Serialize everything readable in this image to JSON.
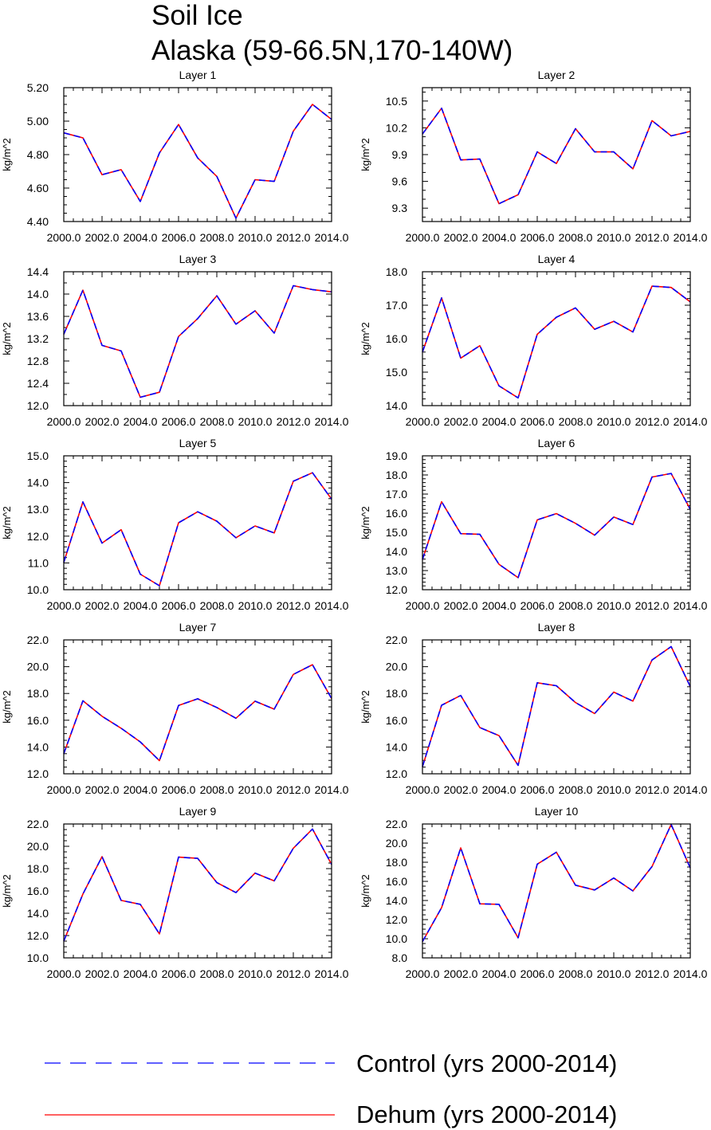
{
  "title": {
    "line1": "Soil Ice",
    "line2": "Alaska (59-66.5N,170-140W)"
  },
  "colors": {
    "control": "#0000ff",
    "dehum": "#ff0000",
    "axes": "#000000",
    "background": "#ffffff"
  },
  "legend": {
    "placement": "bottom",
    "items": [
      {
        "label": "Control (yrs 2000-2014)",
        "color": "#0000ff",
        "style": "dashed"
      },
      {
        "label": "Dehum (yrs 2000-2014)",
        "color": "#ff0000",
        "style": "solid"
      }
    ]
  },
  "chart_data": [
    {
      "type": "line",
      "title": "Layer 1",
      "ylabel": "kg/m^2",
      "x": [
        2000,
        2001,
        2002,
        2003,
        2004,
        2005,
        2006,
        2007,
        2008,
        2009,
        2010,
        2011,
        2012,
        2013,
        2014
      ],
      "xlim": [
        2000,
        2014
      ],
      "xticks": [
        2000,
        2002,
        2004,
        2006,
        2008,
        2010,
        2012,
        2014
      ],
      "xtick_labels": [
        "2000.0",
        "2002.0",
        "2004.0",
        "2006.0",
        "2008.0",
        "2010.0",
        "2012.0",
        "2014.0"
      ],
      "ylim": [
        4.4,
        5.2
      ],
      "yticks": [
        4.4,
        4.6,
        4.8,
        5.0,
        5.2
      ],
      "ytick_labels": [
        "4.40",
        "4.60",
        "4.80",
        "5.00",
        "5.20"
      ],
      "yminor": 4,
      "series": [
        {
          "name": "Control (yrs 2000-2014)",
          "values": [
            4.93,
            4.9,
            4.68,
            4.71,
            4.52,
            4.81,
            4.98,
            4.78,
            4.67,
            4.42,
            4.65,
            4.64,
            4.94,
            5.1,
            5.01
          ]
        },
        {
          "name": "Dehum (yrs 2000-2014)",
          "values": [
            4.93,
            4.9,
            4.68,
            4.71,
            4.52,
            4.81,
            4.98,
            4.78,
            4.67,
            4.42,
            4.65,
            4.64,
            4.94,
            5.1,
            5.01
          ]
        }
      ]
    },
    {
      "type": "line",
      "title": "Layer 2",
      "ylabel": "kg/m^2",
      "x": [
        2000,
        2001,
        2002,
        2003,
        2004,
        2005,
        2006,
        2007,
        2008,
        2009,
        2010,
        2011,
        2012,
        2013,
        2014
      ],
      "xlim": [
        2000,
        2014
      ],
      "xticks": [
        2000,
        2002,
        2004,
        2006,
        2008,
        2010,
        2012,
        2014
      ],
      "xtick_labels": [
        "2000.0",
        "2002.0",
        "2004.0",
        "2006.0",
        "2008.0",
        "2010.0",
        "2012.0",
        "2014.0"
      ],
      "ylim": [
        9.15,
        10.65
      ],
      "yticks": [
        9.3,
        9.6,
        9.9,
        10.2,
        10.5
      ],
      "ytick_labels": [
        "9.3",
        "9.6",
        "9.9",
        "10.2",
        "10.5"
      ],
      "yminor": 3,
      "series": [
        {
          "name": "Control (yrs 2000-2014)",
          "values": [
            10.13,
            10.42,
            9.84,
            9.85,
            9.35,
            9.45,
            9.93,
            9.8,
            10.19,
            9.93,
            9.93,
            9.74,
            10.28,
            10.11,
            10.16
          ]
        },
        {
          "name": "Dehum (yrs 2000-2014)",
          "values": [
            10.13,
            10.42,
            9.84,
            9.85,
            9.35,
            9.45,
            9.93,
            9.8,
            10.19,
            9.93,
            9.93,
            9.74,
            10.28,
            10.11,
            10.16
          ]
        }
      ]
    },
    {
      "type": "line",
      "title": "Layer 3",
      "ylabel": "kg/m^2",
      "x": [
        2000,
        2001,
        2002,
        2003,
        2004,
        2005,
        2006,
        2007,
        2008,
        2009,
        2010,
        2011,
        2012,
        2013,
        2014
      ],
      "xlim": [
        2000,
        2014
      ],
      "xticks": [
        2000,
        2002,
        2004,
        2006,
        2008,
        2010,
        2012,
        2014
      ],
      "xtick_labels": [
        "2000.0",
        "2002.0",
        "2004.0",
        "2006.0",
        "2008.0",
        "2010.0",
        "2012.0",
        "2014.0"
      ],
      "ylim": [
        12.0,
        14.4
      ],
      "yticks": [
        12.0,
        12.4,
        12.8,
        13.2,
        13.6,
        14.0,
        14.4
      ],
      "ytick_labels": [
        "12.0",
        "12.4",
        "12.8",
        "13.2",
        "13.6",
        "14.0",
        "14.4"
      ],
      "yminor": 2,
      "series": [
        {
          "name": "Control (yrs 2000-2014)",
          "values": [
            13.28,
            14.07,
            13.08,
            12.98,
            12.15,
            12.24,
            13.24,
            13.56,
            13.97,
            13.46,
            13.7,
            13.3,
            14.15,
            14.08,
            14.04
          ]
        },
        {
          "name": "Dehum (yrs 2000-2014)",
          "values": [
            13.28,
            14.07,
            13.08,
            12.98,
            12.15,
            12.24,
            13.24,
            13.56,
            13.97,
            13.46,
            13.7,
            13.3,
            14.15,
            14.08,
            14.04
          ]
        }
      ]
    },
    {
      "type": "line",
      "title": "Layer 4",
      "ylabel": "kg/m^2",
      "x": [
        2000,
        2001,
        2002,
        2003,
        2004,
        2005,
        2006,
        2007,
        2008,
        2009,
        2010,
        2011,
        2012,
        2013,
        2014
      ],
      "xlim": [
        2000,
        2014
      ],
      "xticks": [
        2000,
        2002,
        2004,
        2006,
        2008,
        2010,
        2012,
        2014
      ],
      "xtick_labels": [
        "2000.0",
        "2002.0",
        "2004.0",
        "2006.0",
        "2008.0",
        "2010.0",
        "2012.0",
        "2014.0"
      ],
      "ylim": [
        14.0,
        18.0
      ],
      "yticks": [
        14.0,
        15.0,
        16.0,
        17.0,
        18.0
      ],
      "ytick_labels": [
        "14.0",
        "15.0",
        "16.0",
        "17.0",
        "18.0"
      ],
      "yminor": 5,
      "series": [
        {
          "name": "Control (yrs 2000-2014)",
          "values": [
            15.6,
            17.22,
            15.42,
            15.79,
            14.59,
            14.23,
            16.13,
            16.64,
            16.92,
            16.28,
            16.52,
            16.2,
            17.57,
            17.53,
            17.1
          ]
        },
        {
          "name": "Dehum (yrs 2000-2014)",
          "values": [
            15.6,
            17.22,
            15.42,
            15.79,
            14.59,
            14.23,
            16.13,
            16.64,
            16.92,
            16.28,
            16.52,
            16.2,
            17.57,
            17.53,
            17.1
          ]
        }
      ]
    },
    {
      "type": "line",
      "title": "Layer 5",
      "ylabel": "kg/m^2",
      "x": [
        2000,
        2001,
        2002,
        2003,
        2004,
        2005,
        2006,
        2007,
        2008,
        2009,
        2010,
        2011,
        2012,
        2013,
        2014
      ],
      "xlim": [
        2000,
        2014
      ],
      "xticks": [
        2000,
        2002,
        2004,
        2006,
        2008,
        2010,
        2012,
        2014
      ],
      "xtick_labels": [
        "2000.0",
        "2002.0",
        "2004.0",
        "2006.0",
        "2008.0",
        "2010.0",
        "2012.0",
        "2014.0"
      ],
      "ylim": [
        10.0,
        15.0
      ],
      "yticks": [
        10.0,
        11.0,
        12.0,
        13.0,
        14.0,
        15.0
      ],
      "ytick_labels": [
        "10.0",
        "11.0",
        "12.0",
        "13.0",
        "14.0",
        "15.0"
      ],
      "yminor": 5,
      "series": [
        {
          "name": "Control (yrs 2000-2014)",
          "values": [
            11.02,
            13.28,
            11.74,
            12.24,
            10.58,
            10.15,
            12.5,
            12.91,
            12.56,
            11.94,
            12.38,
            12.12,
            14.05,
            14.37,
            13.38
          ]
        },
        {
          "name": "Dehum (yrs 2000-2014)",
          "values": [
            11.02,
            13.28,
            11.74,
            12.24,
            10.58,
            10.15,
            12.5,
            12.91,
            12.56,
            11.94,
            12.38,
            12.12,
            14.05,
            14.37,
            13.38
          ]
        }
      ]
    },
    {
      "type": "line",
      "title": "Layer 6",
      "ylabel": "kg/m^2",
      "x": [
        2000,
        2001,
        2002,
        2003,
        2004,
        2005,
        2006,
        2007,
        2008,
        2009,
        2010,
        2011,
        2012,
        2013,
        2014
      ],
      "xlim": [
        2000,
        2014
      ],
      "xticks": [
        2000,
        2002,
        2004,
        2006,
        2008,
        2010,
        2012,
        2014
      ],
      "xtick_labels": [
        "2000.0",
        "2002.0",
        "2004.0",
        "2006.0",
        "2008.0",
        "2010.0",
        "2012.0",
        "2014.0"
      ],
      "ylim": [
        12.0,
        19.0
      ],
      "yticks": [
        12.0,
        13.0,
        14.0,
        15.0,
        16.0,
        17.0,
        18.0,
        19.0
      ],
      "ytick_labels": [
        "12.0",
        "13.0",
        "14.0",
        "15.0",
        "16.0",
        "17.0",
        "18.0",
        "19.0"
      ],
      "yminor": 5,
      "series": [
        {
          "name": "Control (yrs 2000-2014)",
          "values": [
            13.58,
            16.6,
            14.93,
            14.9,
            13.33,
            12.63,
            15.65,
            15.98,
            15.47,
            14.85,
            15.8,
            15.41,
            17.89,
            18.08,
            16.2
          ]
        },
        {
          "name": "Dehum (yrs 2000-2014)",
          "values": [
            13.58,
            16.6,
            14.93,
            14.9,
            13.33,
            12.63,
            15.65,
            15.98,
            15.47,
            14.85,
            15.8,
            15.41,
            17.89,
            18.08,
            16.2
          ]
        }
      ]
    },
    {
      "type": "line",
      "title": "Layer 7",
      "ylabel": "kg/m^2",
      "x": [
        2000,
        2001,
        2002,
        2003,
        2004,
        2005,
        2006,
        2007,
        2008,
        2009,
        2010,
        2011,
        2012,
        2013,
        2014
      ],
      "xlim": [
        2000,
        2014
      ],
      "xticks": [
        2000,
        2002,
        2004,
        2006,
        2008,
        2010,
        2012,
        2014
      ],
      "xtick_labels": [
        "2000.0",
        "2002.0",
        "2004.0",
        "2006.0",
        "2008.0",
        "2010.0",
        "2012.0",
        "2014.0"
      ],
      "ylim": [
        12.0,
        22.0
      ],
      "yticks": [
        12.0,
        14.0,
        16.0,
        18.0,
        20.0,
        22.0
      ],
      "ytick_labels": [
        "12.0",
        "14.0",
        "16.0",
        "18.0",
        "20.0",
        "22.0"
      ],
      "yminor": 4,
      "series": [
        {
          "name": "Control (yrs 2000-2014)",
          "values": [
            13.5,
            17.45,
            16.3,
            15.4,
            14.38,
            12.98,
            17.1,
            17.6,
            16.95,
            16.15,
            17.42,
            16.83,
            19.42,
            20.15,
            17.62
          ]
        },
        {
          "name": "Dehum (yrs 2000-2014)",
          "values": [
            13.5,
            17.45,
            16.3,
            15.4,
            14.38,
            12.98,
            17.1,
            17.6,
            16.95,
            16.15,
            17.42,
            16.83,
            19.42,
            20.15,
            17.62
          ]
        }
      ]
    },
    {
      "type": "line",
      "title": "Layer 8",
      "ylabel": "kg/m^2",
      "x": [
        2000,
        2001,
        2002,
        2003,
        2004,
        2005,
        2006,
        2007,
        2008,
        2009,
        2010,
        2011,
        2012,
        2013,
        2014
      ],
      "xlim": [
        2000,
        2014
      ],
      "xticks": [
        2000,
        2002,
        2004,
        2006,
        2008,
        2010,
        2012,
        2014
      ],
      "xtick_labels": [
        "2000.0",
        "2002.0",
        "2004.0",
        "2006.0",
        "2008.0",
        "2010.0",
        "2012.0",
        "2014.0"
      ],
      "ylim": [
        12.0,
        22.0
      ],
      "yticks": [
        12.0,
        14.0,
        16.0,
        18.0,
        20.0,
        22.0
      ],
      "ytick_labels": [
        "12.0",
        "14.0",
        "16.0",
        "18.0",
        "20.0",
        "22.0"
      ],
      "yminor": 4,
      "series": [
        {
          "name": "Control (yrs 2000-2014)",
          "values": [
            12.53,
            17.12,
            17.85,
            15.45,
            14.85,
            12.63,
            18.8,
            18.58,
            17.32,
            16.5,
            18.1,
            17.43,
            20.5,
            21.5,
            18.52
          ]
        },
        {
          "name": "Dehum (yrs 2000-2014)",
          "values": [
            12.53,
            17.12,
            17.85,
            15.45,
            14.85,
            12.63,
            18.8,
            18.58,
            17.32,
            16.5,
            18.1,
            17.43,
            20.5,
            21.5,
            18.52
          ]
        }
      ]
    },
    {
      "type": "line",
      "title": "Layer 9",
      "ylabel": "kg/m^2",
      "x": [
        2000,
        2001,
        2002,
        2003,
        2004,
        2005,
        2006,
        2007,
        2008,
        2009,
        2010,
        2011,
        2012,
        2013,
        2014
      ],
      "xlim": [
        2000,
        2014
      ],
      "xticks": [
        2000,
        2002,
        2004,
        2006,
        2008,
        2010,
        2012,
        2014
      ],
      "xtick_labels": [
        "2000.0",
        "2002.0",
        "2004.0",
        "2006.0",
        "2008.0",
        "2010.0",
        "2012.0",
        "2014.0"
      ],
      "ylim": [
        10.0,
        22.0
      ],
      "yticks": [
        10.0,
        12.0,
        14.0,
        16.0,
        18.0,
        20.0,
        22.0
      ],
      "ytick_labels": [
        "10.0",
        "12.0",
        "14.0",
        "16.0",
        "18.0",
        "20.0",
        "22.0"
      ],
      "yminor": 4,
      "series": [
        {
          "name": "Control (yrs 2000-2014)",
          "values": [
            11.5,
            15.72,
            19.07,
            15.15,
            14.8,
            12.15,
            19.03,
            18.92,
            16.75,
            15.85,
            17.6,
            16.9,
            19.83,
            21.55,
            18.38
          ]
        },
        {
          "name": "Dehum (yrs 2000-2014)",
          "values": [
            11.5,
            15.72,
            19.07,
            15.15,
            14.8,
            12.15,
            19.03,
            18.92,
            16.75,
            15.85,
            17.6,
            16.9,
            19.83,
            21.55,
            18.38
          ]
        }
      ]
    },
    {
      "type": "line",
      "title": "Layer 10",
      "ylabel": "kg/m^2",
      "x": [
        2000,
        2001,
        2002,
        2003,
        2004,
        2005,
        2006,
        2007,
        2008,
        2009,
        2010,
        2011,
        2012,
        2013,
        2014
      ],
      "xlim": [
        2000,
        2014
      ],
      "xticks": [
        2000,
        2002,
        2004,
        2006,
        2008,
        2010,
        2012,
        2014
      ],
      "xtick_labels": [
        "2000.0",
        "2002.0",
        "2004.0",
        "2006.0",
        "2008.0",
        "2010.0",
        "2012.0",
        "2014.0"
      ],
      "ylim": [
        8.0,
        22.0
      ],
      "yticks": [
        8.0,
        10.0,
        12.0,
        14.0,
        16.0,
        18.0,
        20.0,
        22.0
      ],
      "ytick_labels": [
        "8.0",
        "10.0",
        "12.0",
        "14.0",
        "16.0",
        "18.0",
        "20.0",
        "22.0"
      ],
      "yminor": 4,
      "series": [
        {
          "name": "Control (yrs 2000-2014)",
          "values": [
            9.7,
            13.25,
            19.5,
            13.65,
            13.6,
            10.1,
            17.8,
            19.05,
            15.6,
            15.1,
            16.35,
            15.0,
            17.55,
            21.95,
            17.4
          ]
        },
        {
          "name": "Dehum (yrs 2000-2014)",
          "values": [
            9.7,
            13.25,
            19.5,
            13.65,
            13.6,
            10.1,
            17.8,
            19.05,
            15.6,
            15.1,
            16.35,
            15.0,
            17.55,
            21.95,
            17.4
          ]
        }
      ]
    }
  ]
}
